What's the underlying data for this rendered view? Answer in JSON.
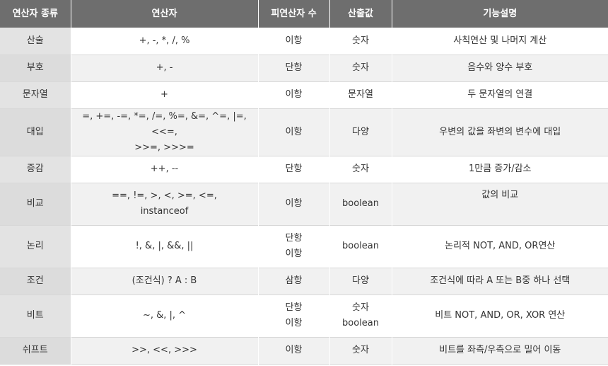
{
  "headers": [
    "연산자 종류",
    "연산자",
    "피연산자 수",
    "산출값",
    "기능설명"
  ],
  "rows": [
    {
      "kind": "산술",
      "ops": "+, -, *, /, %",
      "operands": "이항",
      "result": "숫자",
      "desc": "사칙연산 및 나머지 계산"
    },
    {
      "kind": "부호",
      "ops": "+, -",
      "operands": "단항",
      "result": "숫자",
      "desc": "음수와 양수 부호"
    },
    {
      "kind": "문자열",
      "ops": "+",
      "operands": "이항",
      "result": "문자열",
      "desc": "두 문자열의 연결"
    },
    {
      "kind": "대입",
      "ops": "=, +=, -=, *=, /=, %=, &=, ^=, |=, <<=,\n>>=, >>>=",
      "operands": "이항",
      "result": "다양",
      "desc": "우변의 값을 좌변의 변수에 대입"
    },
    {
      "kind": "증감",
      "ops": "++, --",
      "operands": "단항",
      "result": "숫자",
      "desc": "1만큼 증가/감소"
    },
    {
      "kind": "비교",
      "ops": "==, !=, >, <, >=, <=,\ninstanceof",
      "operands": "이항",
      "result": "boolean",
      "desc": "값의 비교"
    },
    {
      "kind": "논리",
      "ops": "!, &, |, &&, ||",
      "operands": "단항\n이항",
      "result": "boolean",
      "desc": "논리적 NOT, AND, OR연산"
    },
    {
      "kind": "조건",
      "ops": "(조건식) ? A : B",
      "operands": "삼항",
      "result": "다양",
      "desc": "조건식에 따라 A 또는 B중 하나 선택"
    },
    {
      "kind": "비트",
      "ops": "~, &, |, ^",
      "operands": "단항\n이항",
      "result": "숫자\nboolean",
      "desc": "비트 NOT, AND, OR, XOR 연산"
    },
    {
      "kind": "쉬프트",
      "ops": ">>, <<, >>>",
      "operands": "이항",
      "result": "숫자",
      "desc": "비트를 좌측/우측으로 밀어 이동"
    }
  ]
}
